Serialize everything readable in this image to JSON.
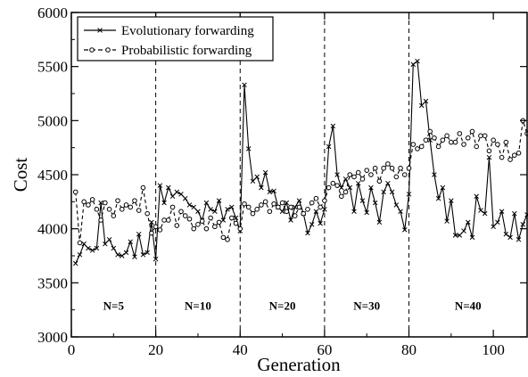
{
  "chart_data": {
    "type": "line",
    "xlabel": "Generation",
    "ylabel": "Cost",
    "xlim": [
      0,
      108
    ],
    "ylim": [
      3000,
      6000
    ],
    "x_ticks": [
      0,
      20,
      40,
      60,
      80,
      100
    ],
    "y_ticks": [
      3000,
      3500,
      4000,
      4500,
      5000,
      5500,
      6000
    ],
    "grid": false,
    "legend_position": "top-left",
    "separators": [
      20,
      40,
      60,
      80
    ],
    "regions": [
      {
        "label": "N=5",
        "x": 10
      },
      {
        "label": "N=10",
        "x": 30
      },
      {
        "label": "N=20",
        "x": 50
      },
      {
        "label": "N=30",
        "x": 70
      },
      {
        "label": "N=40",
        "x": 94
      }
    ],
    "series": [
      {
        "name": "Evolutionary forwarding",
        "style": "solid",
        "marker": "x",
        "x": [
          1,
          2,
          3,
          4,
          5,
          6,
          7,
          8,
          9,
          10,
          11,
          12,
          13,
          14,
          15,
          16,
          17,
          18,
          19,
          20,
          21,
          22,
          23,
          24,
          25,
          26,
          27,
          28,
          29,
          30,
          31,
          32,
          33,
          34,
          35,
          36,
          37,
          38,
          39,
          40,
          41,
          42,
          43,
          44,
          45,
          46,
          47,
          48,
          49,
          50,
          51,
          52,
          53,
          54,
          55,
          56,
          57,
          58,
          59,
          60,
          61,
          62,
          63,
          64,
          65,
          66,
          67,
          68,
          69,
          70,
          71,
          72,
          73,
          74,
          75,
          76,
          77,
          78,
          79,
          80,
          81,
          82,
          83,
          84,
          85,
          86,
          87,
          88,
          89,
          90,
          91,
          92,
          93,
          94,
          95,
          96,
          97,
          98,
          99,
          100,
          101,
          102,
          103,
          104,
          105,
          106,
          107,
          108
        ],
        "values": [
          3680,
          3760,
          3860,
          3820,
          3800,
          3820,
          4240,
          3860,
          3900,
          3820,
          3760,
          3750,
          3780,
          3880,
          3740,
          3950,
          3760,
          3780,
          4060,
          3720,
          4400,
          4240,
          4380,
          4300,
          4340,
          4320,
          4280,
          4220,
          4200,
          4160,
          4080,
          4240,
          4180,
          4160,
          4260,
          4080,
          4180,
          4200,
          4100,
          3980,
          5330,
          4740,
          4440,
          4480,
          4380,
          4520,
          4340,
          4350,
          4200,
          4160,
          4240,
          4080,
          4200,
          4260,
          4140,
          3960,
          4040,
          4160,
          4050,
          4180,
          4760,
          4950,
          4500,
          4380,
          4460,
          4380,
          4160,
          4420,
          4260,
          4150,
          4380,
          4240,
          4060,
          4340,
          4420,
          4340,
          4220,
          4160,
          3990,
          4320,
          5520,
          5550,
          5140,
          5180,
          4820,
          4500,
          4280,
          4380,
          4070,
          4260,
          3940,
          3940,
          3980,
          4060,
          3920,
          4300,
          4170,
          4140,
          4660,
          4020,
          4060,
          4160,
          3950,
          3920,
          4140,
          3900,
          4040,
          4130
        ]
      },
      {
        "name": "Probabilistic forwarding",
        "style": "dashed",
        "marker": "o",
        "x": [
          1,
          2,
          3,
          4,
          5,
          6,
          7,
          8,
          9,
          10,
          11,
          12,
          13,
          14,
          15,
          16,
          17,
          18,
          19,
          20,
          21,
          22,
          23,
          24,
          25,
          26,
          27,
          28,
          29,
          30,
          31,
          32,
          33,
          34,
          35,
          36,
          37,
          38,
          39,
          40,
          41,
          42,
          43,
          44,
          45,
          46,
          47,
          48,
          49,
          50,
          51,
          52,
          53,
          54,
          55,
          56,
          57,
          58,
          59,
          60,
          61,
          62,
          63,
          64,
          65,
          66,
          67,
          68,
          69,
          70,
          71,
          72,
          73,
          74,
          75,
          76,
          77,
          78,
          79,
          80,
          81,
          82,
          83,
          84,
          85,
          86,
          87,
          88,
          89,
          90,
          91,
          92,
          93,
          94,
          95,
          96,
          97,
          98,
          99,
          100,
          101,
          102,
          103,
          104,
          105,
          106,
          107,
          108
        ],
        "values": [
          4340,
          3870,
          4250,
          4220,
          4270,
          4180,
          4080,
          4240,
          4180,
          4120,
          4260,
          4180,
          4220,
          4200,
          4260,
          4170,
          4380,
          4140,
          3960,
          4020,
          3990,
          4080,
          4080,
          4200,
          4030,
          4160,
          4120,
          4090,
          4000,
          4040,
          4070,
          4000,
          4100,
          4020,
          4060,
          3920,
          3900,
          4100,
          4050,
          4000,
          4230,
          4200,
          4140,
          4180,
          4220,
          4250,
          4160,
          4230,
          4200,
          4240,
          4160,
          4200,
          4120,
          4200,
          4140,
          4180,
          4240,
          4280,
          4200,
          4260,
          4380,
          4420,
          4400,
          4300,
          4340,
          4500,
          4480,
          4520,
          4460,
          4540,
          4500,
          4560,
          4440,
          4560,
          4600,
          4560,
          4480,
          4560,
          4500,
          4560,
          4780,
          4740,
          4760,
          4820,
          4900,
          4840,
          4760,
          4820,
          4860,
          4800,
          4800,
          4880,
          4780,
          4840,
          4900,
          4760,
          4860,
          4860,
          4720,
          4820,
          4780,
          4660,
          4800,
          4640,
          4680,
          4700,
          5000,
          4880
        ]
      }
    ]
  }
}
